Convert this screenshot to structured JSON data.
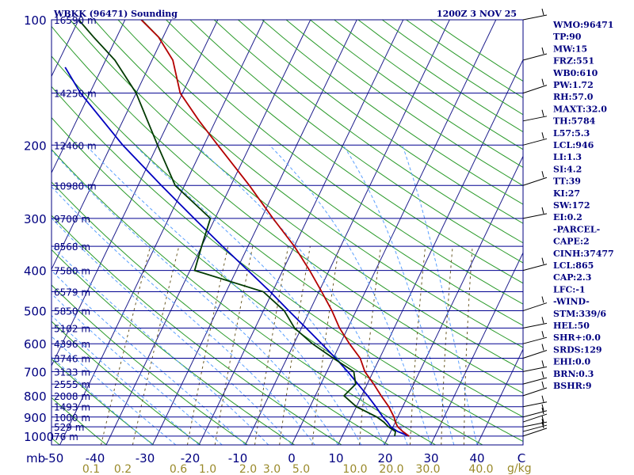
{
  "header": {
    "station": "WBKK (96471) Sounding",
    "time": "1200Z  3 NOV 25"
  },
  "chart_data": {
    "type": "skew-t sounding",
    "pressure_unit": "mb",
    "mixing_ratio_unit": "g/kg",
    "pressure_ticks": [
      100,
      200,
      300,
      400,
      500,
      600,
      700,
      800,
      900,
      1000
    ],
    "temperature_ticks": [
      "-50",
      "-40",
      "-30",
      "-20",
      "-10",
      "0",
      "10",
      "20",
      "30",
      "40",
      "C"
    ],
    "mixing_ratio_labels": [
      "0.1",
      "0.2",
      "0.6",
      "1.0",
      "2.0",
      "3.0",
      "5.0",
      "10.0",
      "20.0",
      "30.0",
      "40.0"
    ],
    "height_labels": [
      {
        "p": 100,
        "label": "16590 m"
      },
      {
        "p": 150,
        "label": "14250 m"
      },
      {
        "p": 200,
        "label": "12460 m"
      },
      {
        "p": 250,
        "label": "10980 m"
      },
      {
        "p": 300,
        "label": "9700 m"
      },
      {
        "p": 350,
        "label": "8568 m"
      },
      {
        "p": 400,
        "label": "7580 m"
      },
      {
        "p": 450,
        "label": "6579 m"
      },
      {
        "p": 500,
        "label": "5850 m"
      },
      {
        "p": 550,
        "label": "5102 m"
      },
      {
        "p": 600,
        "label": "4396 m"
      },
      {
        "p": 650,
        "label": "3746 m"
      },
      {
        "p": 700,
        "label": "3133 m"
      },
      {
        "p": 750,
        "label": "2555 m"
      },
      {
        "p": 800,
        "label": "2008 m"
      },
      {
        "p": 850,
        "label": "1493 m"
      },
      {
        "p": 900,
        "label": "1000 m"
      },
      {
        "p": 950,
        "label": "529 m"
      },
      {
        "p": 1000,
        "label": "76 m"
      }
    ],
    "temperature_profile": [
      {
        "p": 1000,
        "t": 24.4
      },
      {
        "p": 975,
        "t": 22.6
      },
      {
        "p": 950,
        "t": 21.0
      },
      {
        "p": 925,
        "t": 20.0
      },
      {
        "p": 900,
        "t": 19.2
      },
      {
        "p": 850,
        "t": 17.0
      },
      {
        "p": 800,
        "t": 14.2
      },
      {
        "p": 750,
        "t": 11.4
      },
      {
        "p": 700,
        "t": 8.2
      },
      {
        "p": 650,
        "t": 5.8
      },
      {
        "p": 600,
        "t": 2.0
      },
      {
        "p": 550,
        "t": -1.8
      },
      {
        "p": 500,
        "t": -5.2
      },
      {
        "p": 450,
        "t": -9.4
      },
      {
        "p": 400,
        "t": -14.2
      },
      {
        "p": 350,
        "t": -20.0
      },
      {
        "p": 300,
        "t": -27.5
      },
      {
        "p": 250,
        "t": -36.0
      },
      {
        "p": 200,
        "t": -47.0
      },
      {
        "p": 175,
        "t": -53.5
      },
      {
        "p": 150,
        "t": -60.5
      },
      {
        "p": 125,
        "t": -65.5
      },
      {
        "p": 110,
        "t": -71.0
      },
      {
        "p": 100,
        "t": -76.5
      }
    ],
    "dewpoint_profile": [
      {
        "p": 1000,
        "t": 21.3
      },
      {
        "p": 975,
        "t": 21.0
      },
      {
        "p": 950,
        "t": 19.0
      },
      {
        "p": 925,
        "t": 17.5
      },
      {
        "p": 900,
        "t": 15.5
      },
      {
        "p": 850,
        "t": 10.0
      },
      {
        "p": 800,
        "t": 6.2
      },
      {
        "p": 750,
        "t": 7.5
      },
      {
        "p": 700,
        "t": 5.8
      },
      {
        "p": 650,
        "t": 0.0
      },
      {
        "p": 600,
        "t": -6.0
      },
      {
        "p": 550,
        "t": -11.5
      },
      {
        "p": 500,
        "t": -15.5
      },
      {
        "p": 450,
        "t": -22.0
      },
      {
        "p": 400,
        "t": -39.0
      },
      {
        "p": 350,
        "t": -40.0
      },
      {
        "p": 300,
        "t": -41.0
      },
      {
        "p": 250,
        "t": -52.0
      },
      {
        "p": 200,
        "t": -60.0
      },
      {
        "p": 150,
        "t": -70.0
      },
      {
        "p": 125,
        "t": -78.0
      },
      {
        "p": 110,
        "t": -85.0
      },
      {
        "p": 100,
        "t": -90.0
      }
    ],
    "parcel_profile": [
      {
        "p": 1000,
        "t": 24.4
      },
      {
        "p": 975,
        "t": 21.5
      },
      {
        "p": 950,
        "t": 19.5
      },
      {
        "p": 925,
        "t": 18.3
      },
      {
        "p": 900,
        "t": 16.8
      },
      {
        "p": 850,
        "t": 14.2
      },
      {
        "p": 800,
        "t": 11.3
      },
      {
        "p": 750,
        "t": 8.0
      },
      {
        "p": 700,
        "t": 4.5
      },
      {
        "p": 650,
        "t": 0.5
      },
      {
        "p": 600,
        "t": -4.0
      },
      {
        "p": 550,
        "t": -9.0
      },
      {
        "p": 500,
        "t": -14.5
      },
      {
        "p": 450,
        "t": -20.5
      },
      {
        "p": 400,
        "t": -27.5
      },
      {
        "p": 350,
        "t": -35.5
      },
      {
        "p": 300,
        "t": -44.5
      },
      {
        "p": 250,
        "t": -55.0
      },
      {
        "p": 200,
        "t": -67.5
      },
      {
        "p": 150,
        "t": -82.0
      },
      {
        "p": 130,
        "t": -88.0
      }
    ],
    "wind_barb_levels": [
      100,
      125,
      150,
      175,
      200,
      250,
      300,
      400,
      500,
      550,
      600,
      650,
      700,
      750,
      800,
      850,
      900,
      925,
      950,
      975,
      1000
    ]
  },
  "indices": [
    "WMO:96471",
    "TP:90",
    "MW:15",
    "FRZ:551",
    "WB0:610",
    "PW:1.72",
    "RH:57.0",
    "MAXT:32.0",
    "TH:5784",
    "L57:5.3",
    "LCL:946",
    "LI:1.3",
    "SI:4.2",
    "TT:39",
    "KI:27",
    "SW:172",
    "EI:0.2",
    "-PARCEL-",
    "CAPE:2",
    "CINH:37477",
    "LCL:865",
    "CAP:2.3",
    "LFC:-1",
    "-WIND-",
    "STM:339/6",
    "HEL:50",
    "SHR+:0.0",
    "SRDS:129",
    "EHI:0.0",
    "BRN:0.3",
    "BSHR:9"
  ],
  "colors": {
    "temperature": "#b40000",
    "dewpoint": "#003a00",
    "parcel": "#0000c0",
    "isobar": "#000090",
    "isotherm": "#1e1e8c",
    "dry_adiabat": "#2a9a2a",
    "moist_adiabat": "#5aa0ff",
    "mixing_ratio": "#6b5c28"
  }
}
